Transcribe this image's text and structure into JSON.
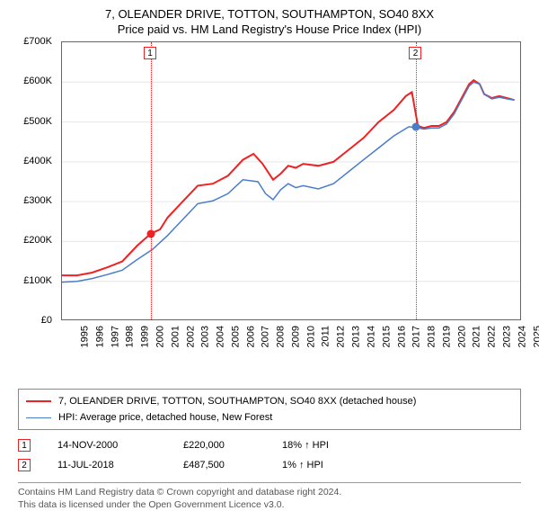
{
  "title_line1": "7, OLEANDER DRIVE, TOTTON, SOUTHAMPTON, SO40 8XX",
  "title_line2": "Price paid vs. HM Land Registry's House Price Index (HPI)",
  "chart": {
    "type": "line",
    "background_color": "#ffffff",
    "grid_color": "#e6e6e6",
    "axis_color": "#666666",
    "label_fontsize": 11,
    "title_fontsize": 13,
    "x_years": [
      1995,
      1996,
      1997,
      1998,
      1999,
      2000,
      2001,
      2002,
      2003,
      2004,
      2005,
      2006,
      2007,
      2008,
      2009,
      2010,
      2011,
      2012,
      2013,
      2014,
      2015,
      2016,
      2017,
      2018,
      2019,
      2020,
      2021,
      2022,
      2023,
      2024,
      2025
    ],
    "xlim": [
      1995,
      2025.5
    ],
    "ylim": [
      0,
      700000
    ],
    "ytick_step": 100000,
    "ytick_labels": [
      "£0",
      "£100K",
      "£200K",
      "£300K",
      "£400K",
      "£500K",
      "£600K",
      "£700K"
    ],
    "series": [
      {
        "name": "price_paid",
        "color": "#ee2222",
        "line_width": 2,
        "points": [
          [
            1995,
            115000
          ],
          [
            1996,
            115000
          ],
          [
            1997,
            122000
          ],
          [
            1998,
            135000
          ],
          [
            1999,
            150000
          ],
          [
            2000,
            190000
          ],
          [
            2000.9,
            220000
          ],
          [
            2001.5,
            230000
          ],
          [
            2002,
            260000
          ],
          [
            2003,
            300000
          ],
          [
            2004,
            340000
          ],
          [
            2005,
            345000
          ],
          [
            2006,
            365000
          ],
          [
            2007,
            405000
          ],
          [
            2007.7,
            420000
          ],
          [
            2008.3,
            395000
          ],
          [
            2009,
            355000
          ],
          [
            2009.5,
            370000
          ],
          [
            2010,
            390000
          ],
          [
            2010.5,
            385000
          ],
          [
            2011,
            395000
          ],
          [
            2012,
            390000
          ],
          [
            2013,
            400000
          ],
          [
            2014,
            430000
          ],
          [
            2015,
            460000
          ],
          [
            2016,
            500000
          ],
          [
            2017,
            530000
          ],
          [
            2017.8,
            565000
          ],
          [
            2018.2,
            575000
          ],
          [
            2018.6,
            490000
          ],
          [
            2019,
            485000
          ],
          [
            2019.5,
            490000
          ],
          [
            2020,
            490000
          ],
          [
            2020.5,
            500000
          ],
          [
            2021,
            525000
          ],
          [
            2021.5,
            560000
          ],
          [
            2022,
            595000
          ],
          [
            2022.3,
            605000
          ],
          [
            2022.7,
            595000
          ],
          [
            2023,
            570000
          ],
          [
            2023.5,
            560000
          ],
          [
            2024,
            565000
          ],
          [
            2024.5,
            560000
          ],
          [
            2025,
            555000
          ]
        ]
      },
      {
        "name": "hpi",
        "color": "#4a7dc9",
        "line_width": 1.5,
        "points": [
          [
            1995,
            98000
          ],
          [
            1996,
            100000
          ],
          [
            1997,
            107000
          ],
          [
            1998,
            117000
          ],
          [
            1999,
            128000
          ],
          [
            2000,
            155000
          ],
          [
            2001,
            180000
          ],
          [
            2002,
            215000
          ],
          [
            2003,
            255000
          ],
          [
            2004,
            295000
          ],
          [
            2005,
            302000
          ],
          [
            2006,
            320000
          ],
          [
            2007,
            355000
          ],
          [
            2008,
            350000
          ],
          [
            2008.5,
            320000
          ],
          [
            2009,
            305000
          ],
          [
            2009.5,
            330000
          ],
          [
            2010,
            345000
          ],
          [
            2010.5,
            335000
          ],
          [
            2011,
            340000
          ],
          [
            2012,
            332000
          ],
          [
            2013,
            345000
          ],
          [
            2014,
            375000
          ],
          [
            2015,
            405000
          ],
          [
            2016,
            435000
          ],
          [
            2017,
            465000
          ],
          [
            2018,
            488000
          ],
          [
            2018.6,
            485000
          ],
          [
            2019,
            482000
          ],
          [
            2019.5,
            485000
          ],
          [
            2020,
            485000
          ],
          [
            2020.5,
            495000
          ],
          [
            2021,
            520000
          ],
          [
            2021.5,
            555000
          ],
          [
            2022,
            590000
          ],
          [
            2022.3,
            600000
          ],
          [
            2022.7,
            595000
          ],
          [
            2023,
            570000
          ],
          [
            2023.5,
            558000
          ],
          [
            2024,
            562000
          ],
          [
            2024.5,
            558000
          ],
          [
            2025,
            555000
          ]
        ]
      }
    ],
    "event_lines": [
      {
        "label": "1",
        "x": 2000.9,
        "color": "#ee2222"
      },
      {
        "label": "2",
        "x": 2018.5,
        "color": "#ee2222"
      }
    ],
    "sale_markers": [
      {
        "x": 2000.9,
        "y": 220000,
        "color": "#ee2222"
      },
      {
        "x": 2018.5,
        "y": 487500,
        "color": "#4a7dc9"
      }
    ]
  },
  "legend": {
    "items": [
      {
        "color": "#ee2222",
        "width": 2,
        "label": "7, OLEANDER DRIVE, TOTTON, SOUTHAMPTON, SO40 8XX (detached house)"
      },
      {
        "color": "#4a7dc9",
        "width": 1.5,
        "label": "HPI: Average price, detached house, New Forest"
      }
    ]
  },
  "sales": [
    {
      "num": "1",
      "color": "#ee2222",
      "date": "14-NOV-2000",
      "price": "£220,000",
      "diff": "18% ↑ HPI"
    },
    {
      "num": "2",
      "color": "#ee2222",
      "date": "11-JUL-2018",
      "price": "£487,500",
      "diff": "1% ↑ HPI"
    }
  ],
  "footer_line1": "Contains HM Land Registry data © Crown copyright and database right 2024.",
  "footer_line2": "This data is licensed under the Open Government Licence v3.0."
}
